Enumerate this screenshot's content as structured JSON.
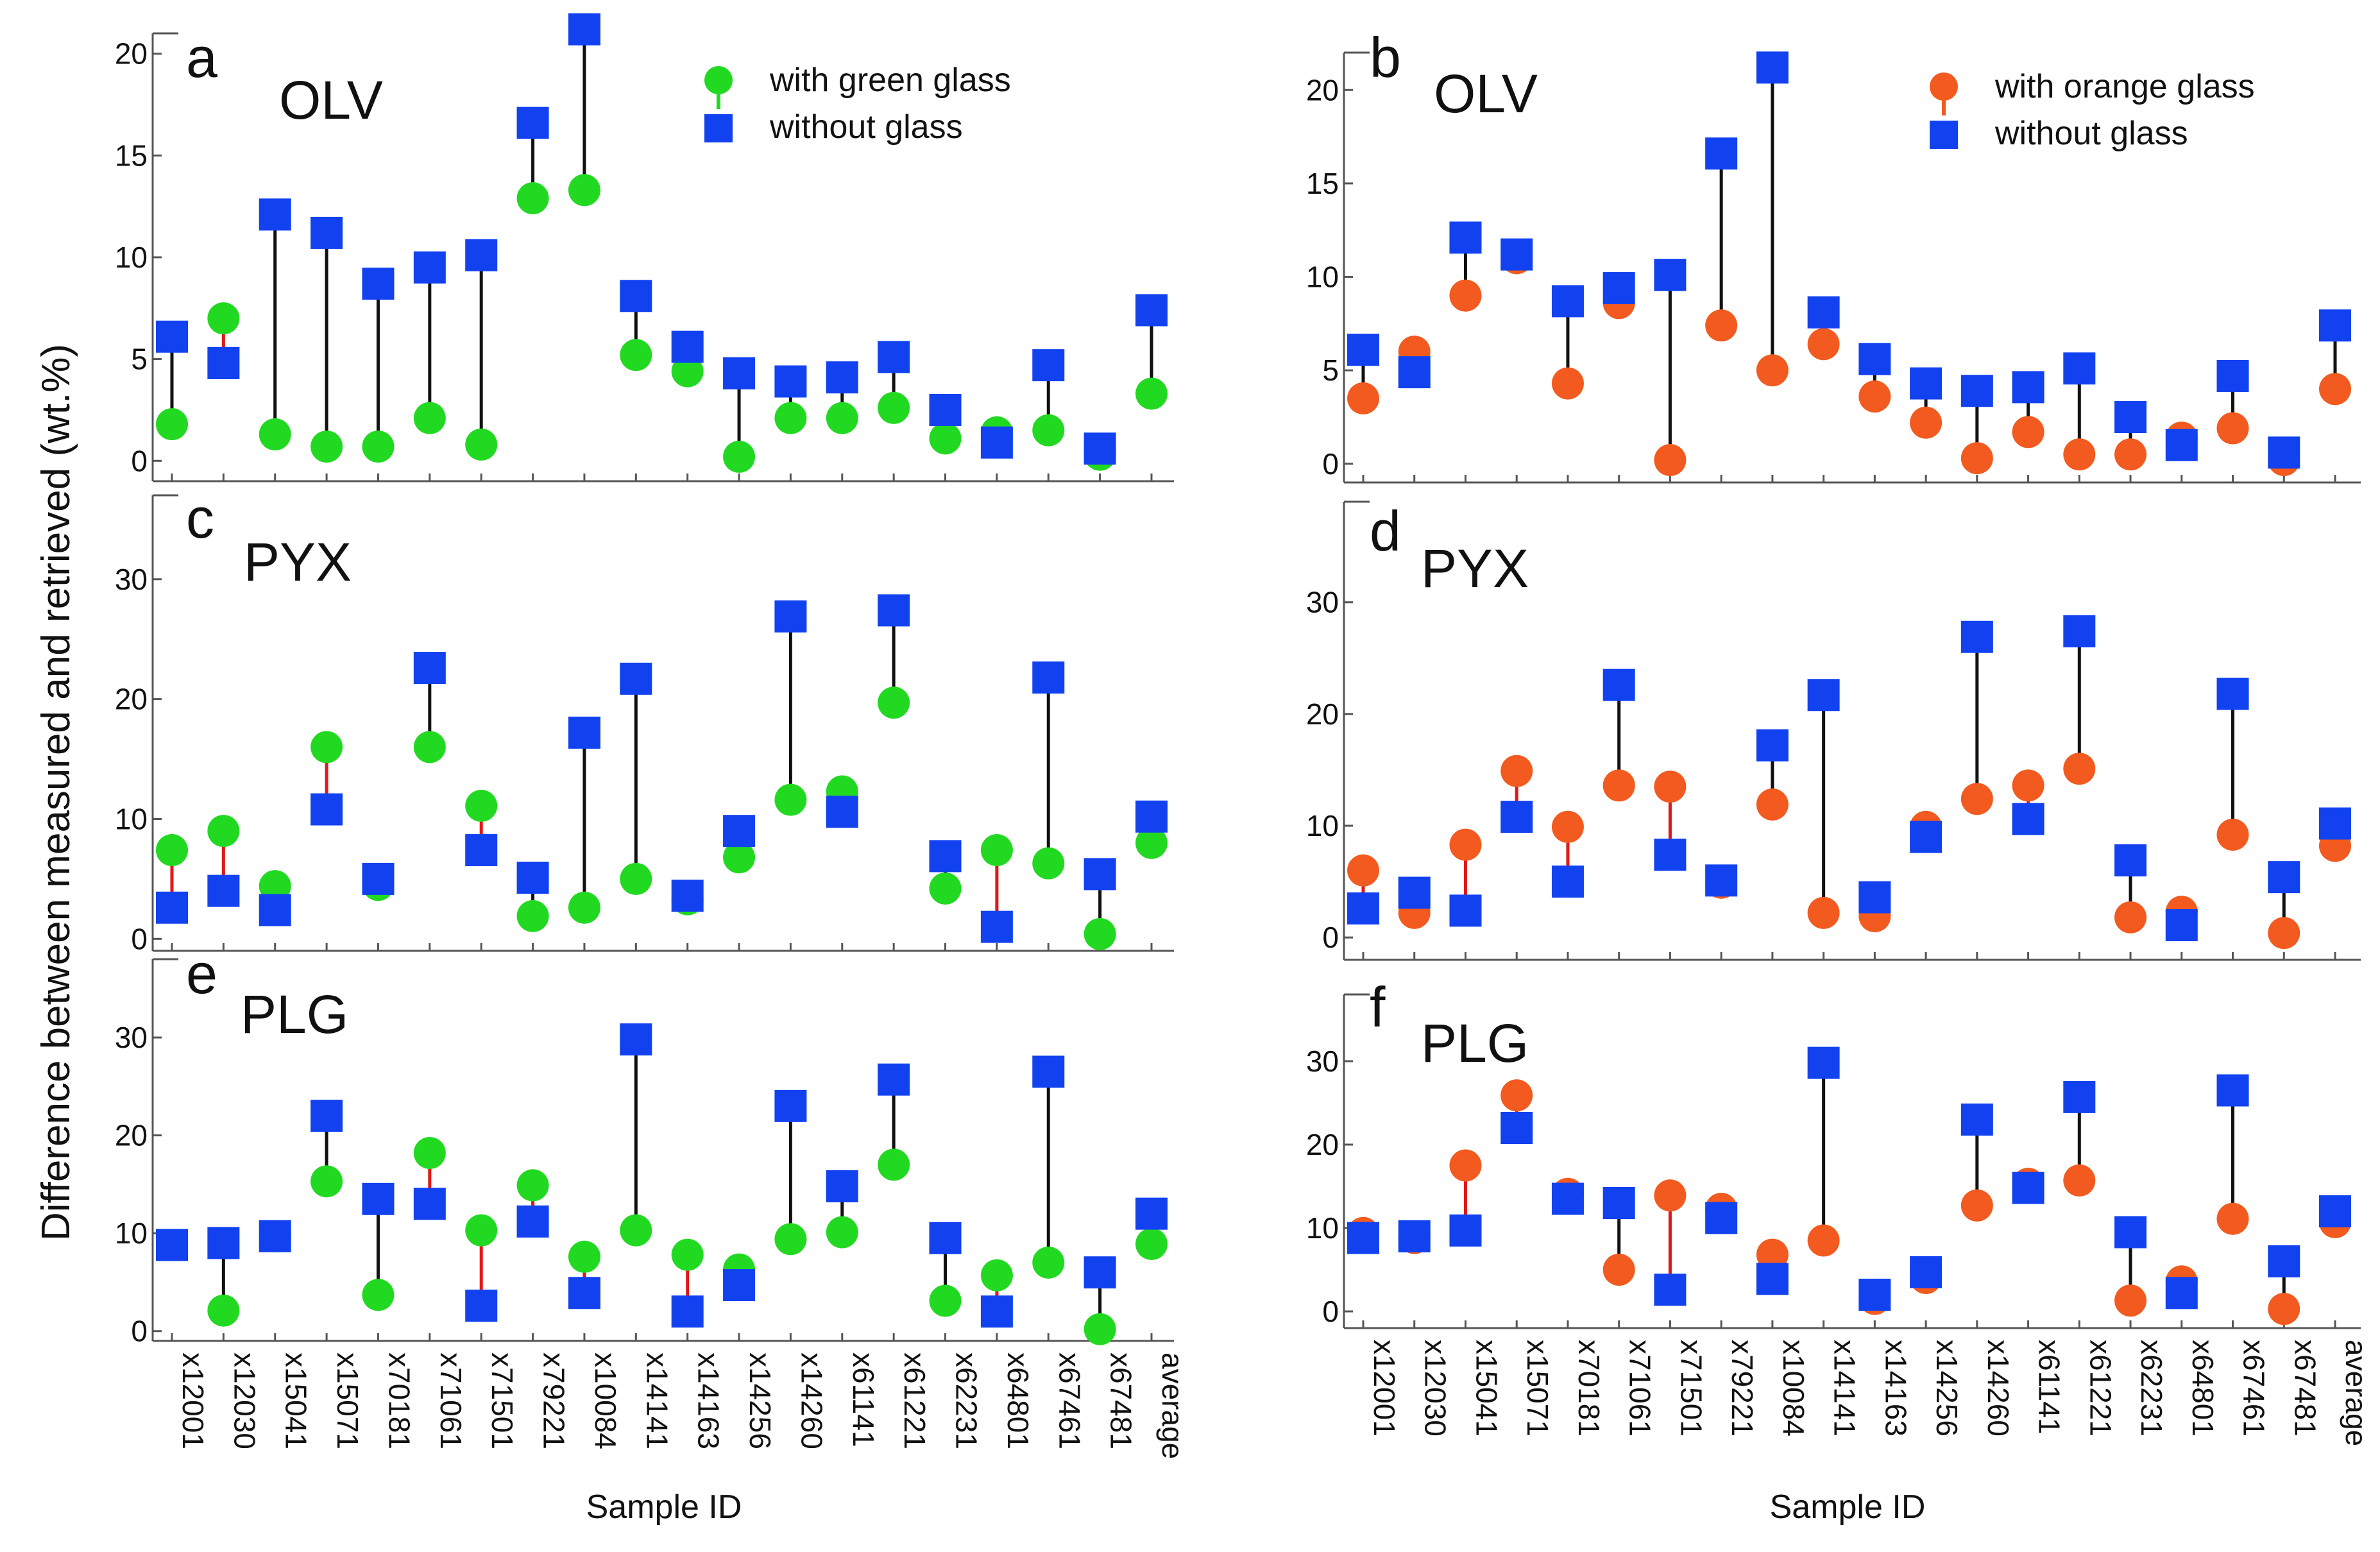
{
  "figure": {
    "ylabel": "Difference between measured and retrieved (wt.%)",
    "xlabel": "Sample ID"
  },
  "colors": {
    "green": "#22d922",
    "orange": "#f25a1f",
    "blue": "#1242f0",
    "black_stem": "#111111",
    "red_stem": "#e01818",
    "frame": "#555555"
  },
  "chart_data": [
    {
      "id": "a",
      "type": "scatter",
      "panel_letter": "a",
      "title": "OLV",
      "x_categories": [
        "x12001",
        "x12030",
        "x15041",
        "x15071",
        "x70181",
        "x71061",
        "x71501",
        "x79221",
        "x10084",
        "x14141",
        "x14163",
        "x14256",
        "x14260",
        "x61141",
        "x61221",
        "x62231",
        "x64801",
        "x67461",
        "x67481",
        "average"
      ],
      "ylim": [
        -1,
        21
      ],
      "yticks": [
        0,
        5,
        10,
        15,
        20
      ],
      "grid": false,
      "legend": "top-right",
      "series": [
        {
          "name": "with green glass",
          "marker": "circle",
          "color": "green",
          "values": [
            1.8,
            7.0,
            1.3,
            0.7,
            0.7,
            2.1,
            0.8,
            12.9,
            13.3,
            5.2,
            4.4,
            0.2,
            2.1,
            2.1,
            2.6,
            1.1,
            1.4,
            1.5,
            0.3,
            3.3
          ]
        },
        {
          "name": "without glass",
          "marker": "square",
          "color": "blue",
          "values": [
            6.1,
            4.8,
            12.1,
            11.2,
            8.7,
            9.5,
            10.1,
            16.6,
            21.2,
            8.1,
            5.6,
            4.3,
            3.9,
            4.1,
            5.1,
            2.5,
            0.9,
            4.7,
            0.6,
            7.4
          ]
        }
      ]
    },
    {
      "id": "b",
      "type": "scatter",
      "panel_letter": "b",
      "title": "OLV",
      "x_categories": [
        "x12001",
        "x12030",
        "x15041",
        "x15071",
        "x70181",
        "x71061",
        "x71501",
        "x79221",
        "x10084",
        "x14141",
        "x14163",
        "x14256",
        "x14260",
        "x61141",
        "x61221",
        "x62231",
        "x64801",
        "x67461",
        "x67481",
        "average"
      ],
      "ylim": [
        -1,
        22
      ],
      "yticks": [
        0,
        5,
        10,
        15,
        20
      ],
      "grid": false,
      "legend": "top-right",
      "series": [
        {
          "name": "with orange  glass",
          "marker": "circle",
          "color": "orange",
          "values": [
            3.5,
            6.0,
            9.0,
            11.0,
            4.3,
            8.6,
            0.2,
            7.4,
            5.0,
            6.4,
            3.6,
            2.2,
            0.3,
            1.7,
            0.5,
            0.5,
            1.4,
            1.9,
            0.2,
            4.0
          ]
        },
        {
          "name": "without glass",
          "marker": "square",
          "color": "blue",
          "values": [
            6.1,
            4.9,
            12.1,
            11.2,
            8.7,
            9.4,
            10.1,
            16.6,
            21.2,
            8.1,
            5.6,
            4.3,
            3.9,
            4.1,
            5.1,
            2.5,
            1.0,
            4.7,
            0.6,
            7.4
          ]
        }
      ]
    },
    {
      "id": "c",
      "type": "scatter",
      "panel_letter": "c",
      "title": "PYX",
      "x_categories": [
        "x12001",
        "x12030",
        "x15041",
        "x15071",
        "x70181",
        "x71061",
        "x71501",
        "x79221",
        "x10084",
        "x14141",
        "x14163",
        "x14256",
        "x14260",
        "x61141",
        "x61221",
        "x62231",
        "x64801",
        "x67461",
        "x67481",
        "average"
      ],
      "ylim": [
        -1,
        37
      ],
      "yticks": [
        0,
        10,
        20,
        30
      ],
      "grid": false,
      "series": [
        {
          "name": "with green glass",
          "marker": "circle",
          "color": "green",
          "values": [
            7.4,
            9.0,
            4.4,
            16.0,
            4.5,
            16.0,
            11.1,
            1.9,
            2.6,
            5.0,
            3.3,
            6.8,
            11.6,
            12.3,
            19.7,
            4.2,
            7.4,
            6.3,
            0.4,
            8.0
          ]
        },
        {
          "name": "without glass",
          "marker": "square",
          "color": "blue",
          "values": [
            2.6,
            4.0,
            2.4,
            10.8,
            5.0,
            22.6,
            7.4,
            5.1,
            17.2,
            21.7,
            3.6,
            9.0,
            26.9,
            10.6,
            27.4,
            6.9,
            1.0,
            21.8,
            5.4,
            10.2
          ]
        }
      ]
    },
    {
      "id": "d",
      "type": "scatter",
      "panel_letter": "d",
      "title": "PYX",
      "x_categories": [
        "x12001",
        "x12030",
        "x15041",
        "x15071",
        "x70181",
        "x71061",
        "x71501",
        "x79221",
        "x10084",
        "x14141",
        "x14163",
        "x14256",
        "x14260",
        "x61141",
        "x61221",
        "x62231",
        "x64801",
        "x67461",
        "x67481",
        "average"
      ],
      "ylim": [
        -2,
        39
      ],
      "yticks": [
        0,
        10,
        20,
        30
      ],
      "grid": false,
      "series": [
        {
          "name": "with orange  glass",
          "marker": "circle",
          "color": "orange",
          "values": [
            6.0,
            2.2,
            8.3,
            14.9,
            9.9,
            13.6,
            13.5,
            4.9,
            11.9,
            2.2,
            1.9,
            9.9,
            12.4,
            13.6,
            15.1,
            1.8,
            2.3,
            9.2,
            0.4,
            8.2
          ]
        },
        {
          "name": "without glass",
          "marker": "square",
          "color": "blue",
          "values": [
            2.6,
            4.0,
            2.4,
            10.8,
            5.0,
            22.6,
            7.4,
            5.1,
            17.2,
            21.7,
            3.6,
            9.0,
            26.9,
            10.6,
            27.4,
            6.9,
            1.1,
            21.8,
            5.4,
            10.2
          ]
        }
      ]
    },
    {
      "id": "e",
      "type": "scatter",
      "panel_letter": "e",
      "title": "PLG",
      "x_categories": [
        "x12001",
        "x12030",
        "x15041",
        "x15071",
        "x70181",
        "x71061",
        "x71501",
        "x79221",
        "x10084",
        "x14141",
        "x14163",
        "x14256",
        "x14260",
        "x61141",
        "x61221",
        "x62231",
        "x64801",
        "x67461",
        "x67481",
        "average"
      ],
      "ylim": [
        -1,
        38
      ],
      "yticks": [
        0,
        10,
        20,
        30
      ],
      "grid": false,
      "series": [
        {
          "name": "with green glass",
          "marker": "circle",
          "color": "green",
          "values": [
            8.8,
            2.1,
            9.7,
            15.3,
            3.7,
            18.2,
            10.3,
            14.9,
            7.6,
            10.3,
            7.8,
            6.3,
            9.4,
            10.1,
            17.0,
            3.1,
            5.7,
            7.0,
            0.2,
            8.9
          ]
        },
        {
          "name": "without glass",
          "marker": "square",
          "color": "blue",
          "values": [
            8.8,
            9.0,
            9.7,
            22.0,
            13.5,
            13.0,
            2.6,
            11.2,
            3.9,
            29.8,
            2.0,
            4.7,
            23.0,
            14.8,
            25.7,
            9.5,
            2.0,
            26.5,
            6.0,
            12.0
          ]
        }
      ]
    },
    {
      "id": "f",
      "type": "scatter",
      "panel_letter": "f",
      "title": "PLG",
      "x_categories": [
        "x12001",
        "x12030",
        "x15041",
        "x15071",
        "x70181",
        "x71061",
        "x71501",
        "x79221",
        "x10084",
        "x14141",
        "x14163",
        "x14256",
        "x14260",
        "x61141",
        "x61221",
        "x62231",
        "x64801",
        "x67461",
        "x67481",
        "average"
      ],
      "ylim": [
        -2,
        38
      ],
      "yticks": [
        0,
        10,
        20,
        30
      ],
      "grid": false,
      "series": [
        {
          "name": "with orange  glass",
          "marker": "circle",
          "color": "orange",
          "values": [
            9.4,
            8.8,
            17.5,
            25.9,
            14.1,
            5.0,
            13.9,
            12.3,
            6.8,
            8.5,
            1.5,
            4.0,
            12.7,
            15.3,
            15.7,
            1.3,
            3.6,
            11.1,
            0.3,
            10.7
          ]
        },
        {
          "name": "without glass",
          "marker": "square",
          "color": "blue",
          "values": [
            8.8,
            9.0,
            9.7,
            22.0,
            13.5,
            13.0,
            2.6,
            11.2,
            3.9,
            29.8,
            2.0,
            4.7,
            23.0,
            14.8,
            25.7,
            9.5,
            2.2,
            26.5,
            6.0,
            12.0
          ]
        }
      ]
    }
  ]
}
